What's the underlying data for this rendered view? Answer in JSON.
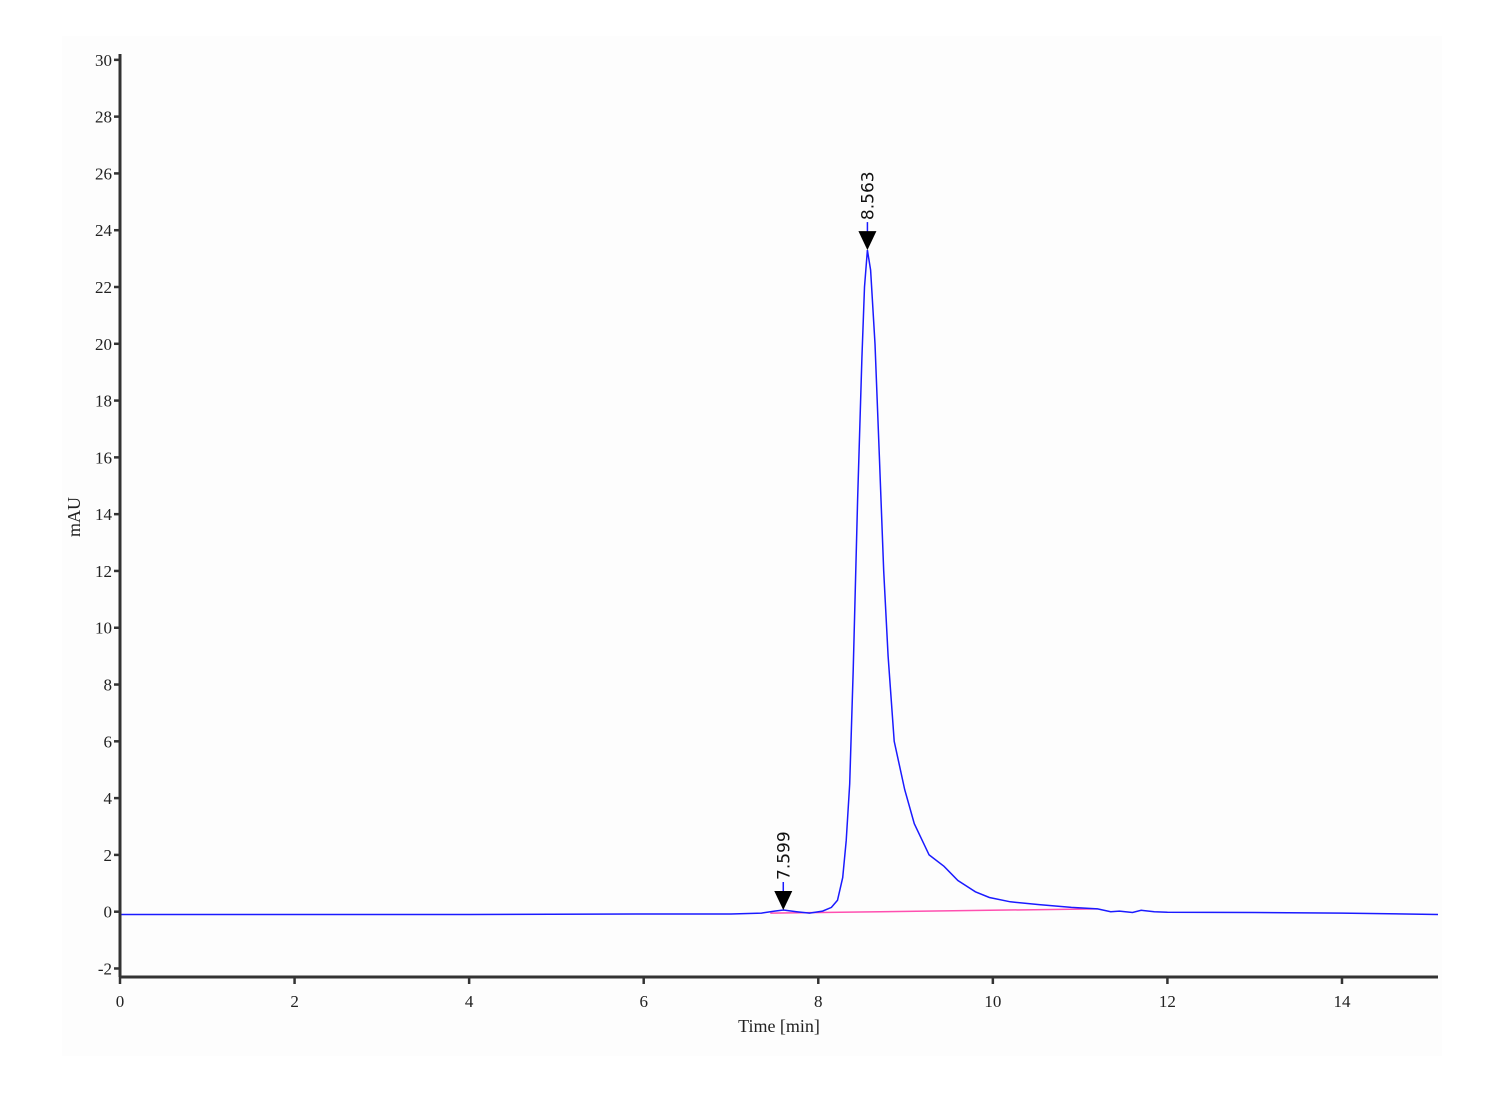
{
  "chart_data": {
    "type": "line",
    "title": "",
    "xlabel": "Time [min]",
    "ylabel": "mAU",
    "xlim": [
      0,
      15.1
    ],
    "ylim": [
      -2.3,
      30.1
    ],
    "xticks": [
      0,
      2,
      4,
      6,
      8,
      10,
      12,
      14
    ],
    "yticks": [
      -2,
      0,
      2,
      4,
      6,
      8,
      10,
      12,
      14,
      16,
      18,
      20,
      22,
      24,
      26,
      28,
      30
    ],
    "grid": false,
    "colors": {
      "signal": "#1a1aff",
      "baseline": "#ff4fb0",
      "axis": "#333333",
      "marker": "#000000"
    },
    "series": [
      {
        "role": "signal",
        "points": [
          [
            0,
            -0.1
          ],
          [
            2,
            -0.1
          ],
          [
            4,
            -0.1
          ],
          [
            6,
            -0.08
          ],
          [
            7,
            -0.08
          ],
          [
            7.35,
            -0.05
          ],
          [
            7.5,
            0.02
          ],
          [
            7.6,
            0.06
          ],
          [
            7.75,
            0.0
          ],
          [
            7.9,
            -0.05
          ],
          [
            8.05,
            0.02
          ],
          [
            8.15,
            0.15
          ],
          [
            8.22,
            0.4
          ],
          [
            8.28,
            1.2
          ],
          [
            8.32,
            2.5
          ],
          [
            8.36,
            4.5
          ],
          [
            8.4,
            8.5
          ],
          [
            8.45,
            14.5
          ],
          [
            8.5,
            19.5
          ],
          [
            8.53,
            22
          ],
          [
            8.563,
            23.3
          ],
          [
            8.6,
            22.6
          ],
          [
            8.65,
            20
          ],
          [
            8.7,
            16
          ],
          [
            8.75,
            12
          ],
          [
            8.8,
            9
          ],
          [
            8.87,
            6.0
          ],
          [
            8.99,
            4.3
          ],
          [
            9.1,
            3.1
          ],
          [
            9.27,
            2.0
          ],
          [
            9.44,
            1.6
          ],
          [
            9.6,
            1.1
          ],
          [
            9.8,
            0.7
          ],
          [
            9.96,
            0.5
          ],
          [
            10.2,
            0.35
          ],
          [
            10.53,
            0.25
          ],
          [
            10.9,
            0.15
          ],
          [
            11.2,
            0.1
          ],
          [
            11.35,
            0.0
          ],
          [
            11.45,
            0.02
          ],
          [
            11.6,
            -0.03
          ],
          [
            11.7,
            0.05
          ],
          [
            11.85,
            0.0
          ],
          [
            12,
            -0.02
          ],
          [
            13,
            -0.03
          ],
          [
            14,
            -0.05
          ],
          [
            15.1,
            -0.1
          ]
        ]
      },
      {
        "role": "baseline",
        "points": [
          [
            7.45,
            -0.05
          ],
          [
            11.2,
            0.1
          ]
        ]
      }
    ],
    "peaks": [
      {
        "label": "7.599",
        "time": 7.599,
        "height": 0.06
      },
      {
        "label": "8.563",
        "time": 8.563,
        "height": 23.3
      }
    ]
  }
}
